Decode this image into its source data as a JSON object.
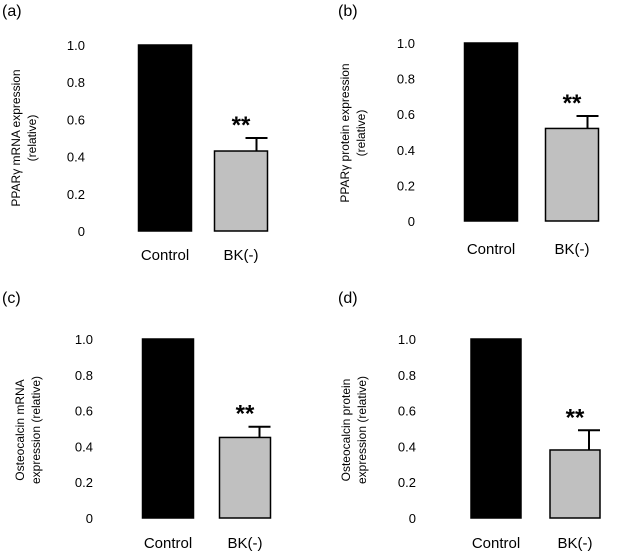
{
  "chart_data": [
    {
      "type": "bar",
      "panel_label": "(a)",
      "ylabel": [
        "PPARγ mRNA expression",
        "(relative)"
      ],
      "categories": [
        "Control",
        "BK(-)"
      ],
      "values": [
        1.0,
        0.43
      ],
      "errors": [
        0,
        0.07
      ],
      "annotation": "**",
      "ylim": [
        0,
        1.0
      ],
      "yticks": [
        "0",
        "0.2",
        "0.4",
        "0.6",
        "0.8",
        "1.0"
      ],
      "colors": [
        "#000000",
        "#c0c0c0"
      ]
    },
    {
      "type": "bar",
      "panel_label": "(b)",
      "ylabel": [
        "PPARγ protein expression",
        "(relative)"
      ],
      "categories": [
        "Control",
        "BK(-)"
      ],
      "values": [
        1.0,
        0.52
      ],
      "errors": [
        0,
        0.07
      ],
      "annotation": "**",
      "ylim": [
        0,
        1.0
      ],
      "yticks": [
        "0",
        "0.2",
        "0.4",
        "0.6",
        "0.8",
        "1.0"
      ],
      "colors": [
        "#000000",
        "#c0c0c0"
      ]
    },
    {
      "type": "bar",
      "panel_label": "(c)",
      "ylabel": [
        "Osteocalcin mRNA",
        "expression (relative)"
      ],
      "categories": [
        "Control",
        "BK(-)"
      ],
      "values": [
        1.0,
        0.45
      ],
      "errors": [
        0,
        0.06
      ],
      "annotation": "**",
      "ylim": [
        0,
        1.0
      ],
      "yticks": [
        "0",
        "0.2",
        "0.4",
        "0.6",
        "0.8",
        "1.0"
      ],
      "colors": [
        "#000000",
        "#c0c0c0"
      ]
    },
    {
      "type": "bar",
      "panel_label": "(d)",
      "ylabel": [
        "Osteocalcin protein",
        "expression (relative)"
      ],
      "categories": [
        "Control",
        "BK(-)"
      ],
      "values": [
        1.0,
        0.38
      ],
      "errors": [
        0,
        0.11
      ],
      "annotation": "**",
      "ylim": [
        0,
        1.0
      ],
      "yticks": [
        "0",
        "0.2",
        "0.4",
        "0.6",
        "0.8",
        "1.0"
      ],
      "colors": [
        "#000000",
        "#c0c0c0"
      ]
    }
  ]
}
